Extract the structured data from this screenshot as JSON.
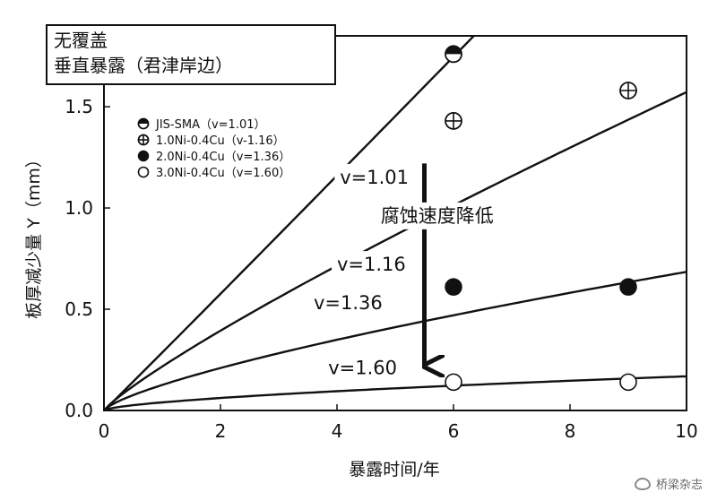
{
  "chart_data": {
    "type": "scatter",
    "title_lines": [
      "无覆盖",
      "垂直暴露（君津岸边）"
    ],
    "xlabel": "暴露时间/年",
    "ylabel": "板厚减少量 Y（mm）",
    "xlim": [
      0,
      10
    ],
    "ylim": [
      0,
      1.85
    ],
    "xticks": [
      0,
      2,
      4,
      6,
      8,
      10
    ],
    "yticks": [
      0.0,
      0.5,
      1.0,
      1.5
    ],
    "ytick_labels": [
      "0.0",
      "0.5",
      "1.0",
      "1.5"
    ],
    "grid": false,
    "legend_position": "upper-left",
    "series": [
      {
        "name": "JIS-SMA（v=1.01）",
        "marker": "half-filled",
        "points": [
          [
            6,
            1.76
          ]
        ]
      },
      {
        "name": "1.0Ni-0.4Cu（v-1.16）",
        "marker": "circle-plus",
        "points": [
          [
            6,
            1.43
          ],
          [
            9,
            1.58
          ]
        ]
      },
      {
        "name": "2.0Ni-0.4Cu（v=1.36）",
        "marker": "filled",
        "points": [
          [
            6,
            0.61
          ],
          [
            9,
            0.61
          ]
        ]
      },
      {
        "name": "3.0Ni-0.4Cu（v=1.60）",
        "marker": "open",
        "points": [
          [
            6,
            0.14
          ],
          [
            9,
            0.14
          ]
        ]
      }
    ],
    "curves": [
      {
        "label": "v=1.01",
        "A": 0.286,
        "B": 1.01,
        "label_at": [
          4.05,
          1.12
        ]
      },
      {
        "label": "v=1.16",
        "A": 0.217,
        "B": 0.86,
        "label_at": [
          4.0,
          0.69
        ]
      },
      {
        "label": "v=1.36",
        "A": 0.126,
        "B": 0.735,
        "label_at": [
          3.6,
          0.5
        ]
      },
      {
        "label": "v=1.60",
        "A": 0.04,
        "B": 0.625,
        "label_at": [
          3.85,
          0.18
        ]
      }
    ],
    "annotation": {
      "text": "腐蚀速度降低",
      "at": [
        5.72,
        0.93
      ]
    },
    "arrow": {
      "from": [
        5.5,
        1.22
      ],
      "to": [
        5.5,
        0.22
      ]
    }
  },
  "watermark": {
    "text": "桥梁杂志",
    "icon": "wechat-icon"
  }
}
